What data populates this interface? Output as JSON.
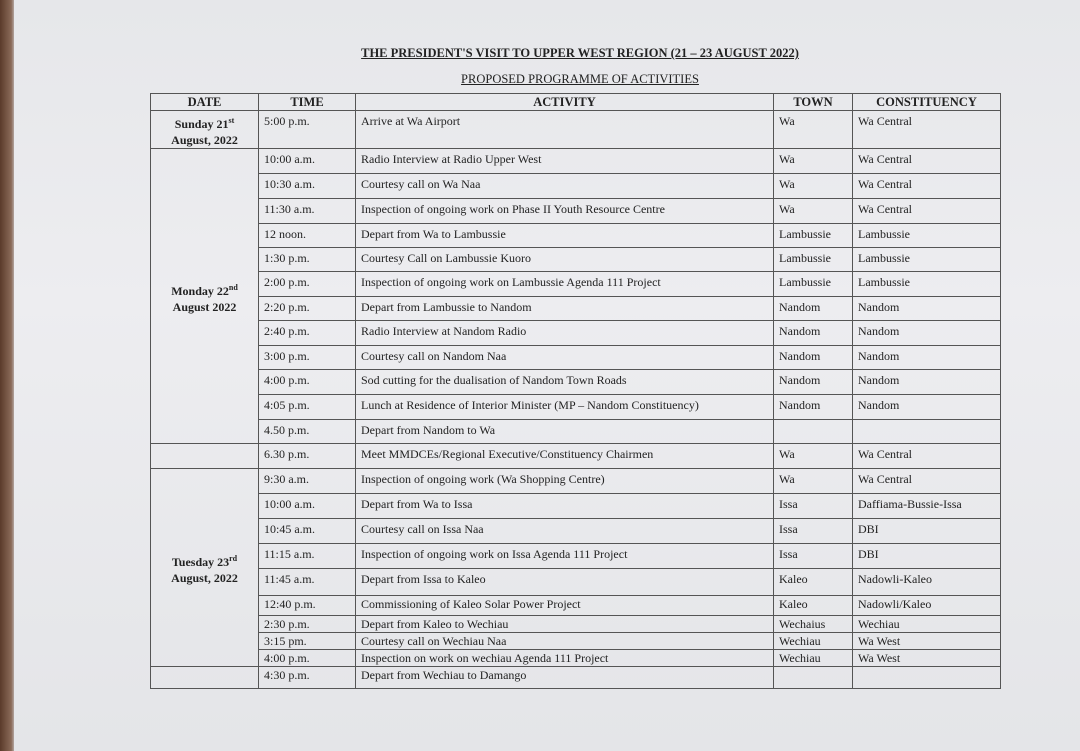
{
  "title": "THE PRESIDENT'S VISIT TO UPPER WEST REGION (21 – 23 AUGUST 2022)",
  "subtitle": "PROPOSED PROGRAMME OF ACTIVITIES",
  "columns": [
    "DATE",
    "TIME",
    "ACTIVITY",
    "TOWN",
    "CONSTITUENCY"
  ],
  "dates": [
    {
      "day": "Sunday 21",
      "sup": "st",
      "rest": "August, 2022"
    },
    {
      "day": "Monday 22",
      "sup": "nd",
      "rest": "August 2022"
    },
    {
      "day": "Tuesday 23",
      "sup": "rd",
      "rest": "August, 2022"
    }
  ],
  "rows": [
    {
      "time": "5:00 p.m.",
      "activity": "Arrive at Wa Airport",
      "town": "Wa",
      "constituency": "Wa Central"
    },
    {
      "time": "10:00 a.m.",
      "activity": "Radio Interview at Radio Upper West",
      "town": "Wa",
      "constituency": "Wa Central"
    },
    {
      "time": "10:30 a.m.",
      "activity": "Courtesy call on Wa Naa",
      "town": "Wa",
      "constituency": "Wa Central"
    },
    {
      "time": "11:30 a.m.",
      "activity": "Inspection of ongoing work on Phase II Youth Resource Centre",
      "town": "Wa",
      "constituency": "Wa Central"
    },
    {
      "time": "12 noon.",
      "activity": "Depart from Wa to Lambussie",
      "town": "Lambussie",
      "constituency": "Lambussie"
    },
    {
      "time": "1:30 p.m.",
      "activity": "Courtesy Call on Lambussie Kuoro",
      "town": "Lambussie",
      "constituency": "Lambussie"
    },
    {
      "time": "2:00 p.m.",
      "activity": "Inspection of ongoing work  on Lambussie Agenda 111 Project",
      "town": "Lambussie",
      "constituency": "Lambussie"
    },
    {
      "time": "2:20 p.m.",
      "activity": "Depart from Lambussie to Nandom",
      "town": "Nandom",
      "constituency": "Nandom"
    },
    {
      "time": "2:40 p.m.",
      "activity": "Radio Interview at Nandom Radio",
      "town": "Nandom",
      "constituency": "Nandom"
    },
    {
      "time": "3:00 p.m.",
      "activity": "Courtesy call on Nandom Naa",
      "town": "Nandom",
      "constituency": "Nandom"
    },
    {
      "time": "4:00 p.m.",
      "activity": "Sod cutting for the dualisation of Nandom Town Roads",
      "town": "Nandom",
      "constituency": "Nandom"
    },
    {
      "time": "4:05 p.m.",
      "activity": "Lunch at Residence of Interior Minister (MP – Nandom Constituency)",
      "town": "Nandom",
      "constituency": "Nandom"
    },
    {
      "time": "4.50 p.m.",
      "activity": "Depart from Nandom to Wa",
      "town": "",
      "constituency": ""
    },
    {
      "time": "6.30 p.m.",
      "activity": "Meet MMDCEs/Regional Executive/Constituency Chairmen",
      "town": "Wa",
      "constituency": "Wa Central"
    },
    {
      "time": "9:30 a.m.",
      "activity": "Inspection of ongoing work (Wa Shopping Centre)",
      "town": "Wa",
      "constituency": "Wa Central"
    },
    {
      "time": "10:00 a.m.",
      "activity": "Depart from Wa to Issa",
      "town": "Issa",
      "constituency": "Daffiama-Bussie-Issa"
    },
    {
      "time": "10:45 a.m.",
      "activity": "Courtesy call on Issa Naa",
      "town": "Issa",
      "constituency": "DBI"
    },
    {
      "time": "11:15 a.m.",
      "activity": "Inspection of ongoing work on Issa Agenda 111 Project",
      "town": "Issa",
      "constituency": "DBI"
    },
    {
      "time": "11:45 a.m.",
      "activity": "Depart from Issa to Kaleo",
      "town": "Kaleo",
      "constituency": "Nadowli-Kaleo"
    },
    {
      "time": "12:40 p.m.",
      "activity": "Commissioning of Kaleo Solar Power Project",
      "town": "Kaleo",
      "constituency": "Nadowli/Kaleo"
    },
    {
      "time": "2:30 p.m.",
      "activity": "Depart from Kaleo to Wechiau",
      "town": "Wechaius",
      "constituency": "Wechiau"
    },
    {
      "time": "3:15 pm.",
      "activity": "Courtesy call on Wechiau Naa",
      "town": "Wechiau",
      "constituency": "Wa West"
    },
    {
      "time": "4:00 p.m.",
      "activity": "Inspection on work on wechiau Agenda 111 Project",
      "town": "Wechiau",
      "constituency": "Wa West"
    },
    {
      "time": "4:30 p.m.",
      "activity": "Depart from Wechiau to Damango",
      "town": "",
      "constituency": ""
    }
  ]
}
